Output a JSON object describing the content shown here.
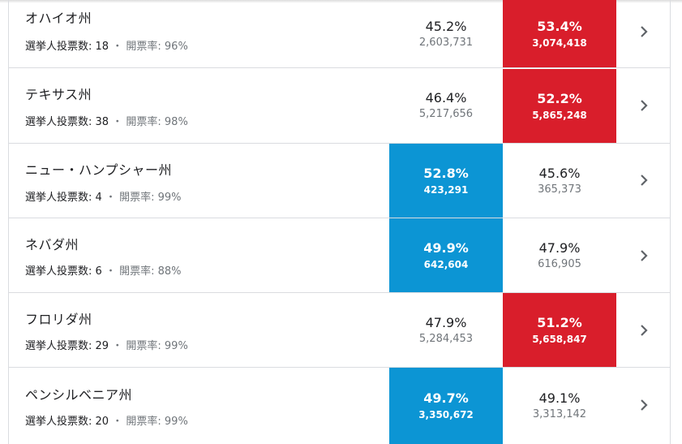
{
  "colors": {
    "democrat": "#0c95d4",
    "republican": "#d91e2b"
  },
  "rows": [
    {
      "state": "オハイオ州",
      "electors_label": "選挙人投票数:",
      "electors": "18",
      "sep": "・",
      "reporting_label": "開票率:",
      "reporting": "96%",
      "dem_pct": "45.2%",
      "dem_votes": "2,603,731",
      "rep_pct": "53.4%",
      "rep_votes": "3,074,418",
      "winner": "rep",
      "icon": "chevron-right-icon"
    },
    {
      "state": "テキサス州",
      "electors_label": "選挙人投票数:",
      "electors": "38",
      "sep": "・",
      "reporting_label": "開票率:",
      "reporting": "98%",
      "dem_pct": "46.4%",
      "dem_votes": "5,217,656",
      "rep_pct": "52.2%",
      "rep_votes": "5,865,248",
      "winner": "rep",
      "icon": "chevron-right-icon"
    },
    {
      "state": "ニュー・ハンプシャー州",
      "electors_label": "選挙人投票数:",
      "electors": "4",
      "sep": "・",
      "reporting_label": "開票率:",
      "reporting": "99%",
      "dem_pct": "52.8%",
      "dem_votes": "423,291",
      "rep_pct": "45.6%",
      "rep_votes": "365,373",
      "winner": "dem",
      "icon": "chevron-right-icon"
    },
    {
      "state": "ネバダ州",
      "electors_label": "選挙人投票数:",
      "electors": "6",
      "sep": "・",
      "reporting_label": "開票率:",
      "reporting": "88%",
      "dem_pct": "49.9%",
      "dem_votes": "642,604",
      "rep_pct": "47.9%",
      "rep_votes": "616,905",
      "winner": "dem",
      "icon": "chevron-right-icon"
    },
    {
      "state": "フロリダ州",
      "electors_label": "選挙人投票数:",
      "electors": "29",
      "sep": "・",
      "reporting_label": "開票率:",
      "reporting": "99%",
      "dem_pct": "47.9%",
      "dem_votes": "5,284,453",
      "rep_pct": "51.2%",
      "rep_votes": "5,658,847",
      "winner": "rep",
      "icon": "chevron-right-icon"
    },
    {
      "state": "ペンシルベニア州",
      "electors_label": "選挙人投票数:",
      "electors": "20",
      "sep": "・",
      "reporting_label": "開票率:",
      "reporting": "99%",
      "dem_pct": "49.7%",
      "dem_votes": "3,350,672",
      "rep_pct": "49.1%",
      "rep_votes": "3,313,142",
      "winner": "dem",
      "icon": "chevron-right-icon"
    }
  ]
}
